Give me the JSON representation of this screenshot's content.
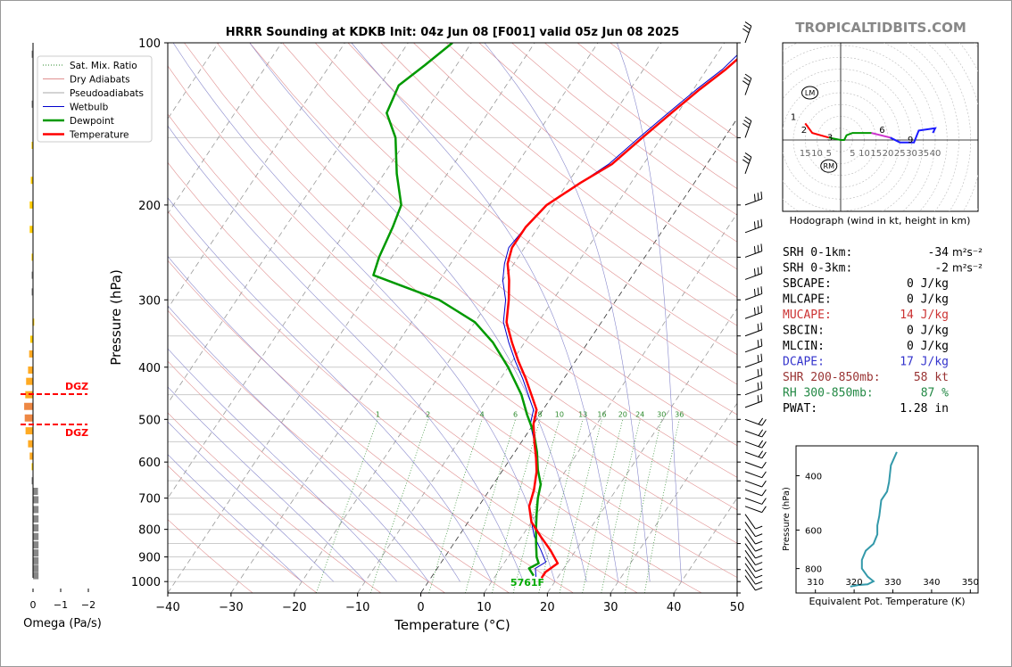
{
  "title": "HRRR Sounding at KDKB Init: 04z Jun 08 [F001] valid 05z Jun 08 2025",
  "watermark": "TROPICALTIDBITS.COM",
  "skewt": {
    "xlabel": "Temperature (°C)",
    "ylabel": "Pressure (hPa)",
    "xlim": [
      -40,
      50
    ],
    "ylim": [
      1050,
      100
    ],
    "xticks": [
      -40,
      -30,
      -20,
      -10,
      0,
      10,
      20,
      30,
      40,
      50
    ],
    "yticks": [
      100,
      200,
      300,
      400,
      500,
      600,
      700,
      800,
      900,
      1000
    ],
    "mixing_ratio_labels": [
      "1",
      "2",
      "4",
      "6",
      "8",
      "10",
      "13",
      "16",
      "20",
      "24",
      "30",
      "36"
    ],
    "surface_label": "5761F",
    "colors": {
      "temperature": "#ff0000",
      "dewpoint": "#009900",
      "wetbulb": "#0000cc",
      "sfc_label": "#00aa00"
    }
  },
  "legend": [
    {
      "label": "Sat. Mix. Ratio",
      "color": "#2e8b2e",
      "style": "dotted"
    },
    {
      "label": "Dry Adiabats",
      "color": "#e09090",
      "style": "solid"
    },
    {
      "label": "Pseudoadiabats",
      "color": "#aaaaaa",
      "style": "solid"
    },
    {
      "label": "Wetbulb",
      "color": "#0000cc",
      "style": "solid"
    },
    {
      "label": "Dewpoint",
      "color": "#009900",
      "style": "thick"
    },
    {
      "label": "Temperature",
      "color": "#ff0000",
      "style": "thick"
    }
  ],
  "chart_data": [
    {
      "type": "line",
      "title": "HRRR Sounding at KDKB Init: 04z Jun 08 [F001] valid 05z Jun 08 2025",
      "xlabel": "Temperature (°C)",
      "ylabel": "Pressure (hPa)",
      "series": [
        {
          "name": "Temperature",
          "points": [
            [
              17.5,
              985
            ],
            [
              17.5,
              960
            ],
            [
              18.5,
              925
            ],
            [
              16,
              875
            ],
            [
              13,
              825
            ],
            [
              10,
              775
            ],
            [
              8,
              725
            ],
            [
              7,
              675
            ],
            [
              5.5,
              625
            ],
            [
              4,
              590
            ],
            [
              2,
              550
            ],
            [
              0,
              510
            ],
            [
              -1,
              480
            ],
            [
              -3,
              455
            ],
            [
              -6,
              420
            ],
            [
              -9,
              390
            ],
            [
              -12,
              360
            ],
            [
              -15,
              330
            ],
            [
              -17,
              300
            ],
            [
              -19,
              276
            ],
            [
              -21,
              257
            ],
            [
              -22,
              240
            ],
            [
              -22,
              220
            ],
            [
              -21,
              200
            ],
            [
              -18,
              182
            ],
            [
              -15,
              168
            ],
            [
              -13,
              150
            ],
            [
              -11,
              135
            ],
            [
              -9,
              122
            ],
            [
              -7,
              112
            ],
            [
              -5,
              100
            ]
          ]
        },
        {
          "name": "Dewpoint",
          "points": [
            [
              16,
              975
            ],
            [
              14.5,
              945
            ],
            [
              15.5,
              925
            ],
            [
              14.5,
              900
            ],
            [
              13,
              850
            ],
            [
              11.5,
              800
            ],
            [
              10,
              750
            ],
            [
              8.5,
              700
            ],
            [
              7.5,
              660
            ],
            [
              5.5,
              620
            ],
            [
              3.5,
              575
            ],
            [
              1,
              530
            ],
            [
              -2,
              490
            ],
            [
              -5,
              450
            ],
            [
              -10,
              400
            ],
            [
              -15,
              360
            ],
            [
              -20,
              330
            ],
            [
              -28,
              300
            ],
            [
              -41,
              270
            ],
            [
              -42,
              250
            ],
            [
              -43,
              220
            ],
            [
              -44,
              200
            ],
            [
              -48,
              175
            ],
            [
              -52,
              150
            ],
            [
              -56,
              135
            ],
            [
              -57,
              120
            ],
            [
              -55,
              110
            ],
            [
              -53,
              100
            ]
          ]
        },
        {
          "name": "Wetbulb",
          "points": [
            [
              16.5,
              980
            ],
            [
              15.5,
              945
            ],
            [
              16.5,
              920
            ],
            [
              14.5,
              875
            ],
            [
              12,
              825
            ],
            [
              10,
              775
            ],
            [
              8,
              725
            ],
            [
              7,
              675
            ],
            [
              5.5,
              625
            ],
            [
              4,
              590
            ],
            [
              2,
              550
            ],
            [
              -0.5,
              510
            ],
            [
              -1.5,
              480
            ],
            [
              -3.5,
              455
            ],
            [
              -6.5,
              420
            ],
            [
              -9.5,
              390
            ],
            [
              -12.5,
              360
            ],
            [
              -15.5,
              330
            ],
            [
              -17.5,
              300
            ],
            [
              -20,
              276
            ],
            [
              -21.5,
              257
            ],
            [
              -22.5,
              240
            ],
            [
              -22,
              220
            ],
            [
              -21,
              200
            ],
            [
              -18,
              182
            ],
            [
              -15.5,
              168
            ],
            [
              -13.5,
              150
            ],
            [
              -11.5,
              135
            ],
            [
              -9.5,
              122
            ],
            [
              -7.5,
              112
            ],
            [
              -6,
              100
            ]
          ]
        }
      ]
    },
    {
      "type": "line",
      "title": "Hodograph (wind in kt, height in km)",
      "height_labels": [
        "1",
        "2",
        "3",
        "6",
        "9",
        "LM",
        "RM"
      ],
      "ring_labels": [
        "15",
        "10",
        "5",
        "5",
        "10",
        "15",
        "20",
        "25",
        "30",
        "35",
        "40"
      ],
      "series": [
        {
          "name": "0-3 km",
          "color": "#ff0000",
          "points": [
            [
              -15,
              7
            ],
            [
              -12,
              3
            ],
            [
              -5,
              1
            ]
          ]
        },
        {
          "name": "3-6 km",
          "color": "#009900",
          "points": [
            [
              -5,
              1
            ],
            [
              0,
              0
            ],
            [
              1.5,
              0
            ],
            [
              2.5,
              2
            ],
            [
              5,
              3
            ],
            [
              9,
              3
            ],
            [
              13,
              3
            ]
          ]
        },
        {
          "name": "6-9 km",
          "color": "#cc33cc",
          "points": [
            [
              13,
              3
            ],
            [
              17,
              2
            ],
            [
              21,
              1
            ]
          ]
        },
        {
          "name": "9+ km",
          "color": "#1a1aff",
          "points": [
            [
              21,
              1
            ],
            [
              25,
              -1
            ],
            [
              31,
              -1
            ],
            [
              33,
              4
            ],
            [
              40,
              5
            ],
            [
              39,
              3
            ]
          ]
        }
      ]
    },
    {
      "type": "line",
      "xlabel": "Equivalent Pot. Temperature (K)",
      "ylabel": "Pressure (hPa)",
      "xticks": [
        310,
        320,
        330,
        340,
        350
      ],
      "yticks": [
        400,
        600,
        800
      ],
      "series": [
        {
          "name": "Theta-E",
          "color": "#3399aa",
          "points": [
            [
              331,
              335
            ],
            [
              329.5,
              370
            ],
            [
              329,
              420
            ],
            [
              328.5,
              450
            ],
            [
              327,
              480
            ],
            [
              326.5,
              540
            ],
            [
              326,
              580
            ],
            [
              326,
              620
            ],
            [
              325,
              665
            ],
            [
              323,
              700
            ],
            [
              322,
              750
            ],
            [
              322,
              800
            ],
            [
              323.5,
              850
            ],
            [
              325,
              880
            ],
            [
              323.5,
              900
            ],
            [
              321,
              905
            ],
            [
              319,
              915
            ]
          ]
        }
      ]
    },
    {
      "type": "bar",
      "xlabel": "Omega (Pa/s)",
      "xticks": [
        "0",
        "−1",
        "−2"
      ],
      "dgz_label": "DGZ",
      "values_note": "orientation horizontal",
      "series": [
        {
          "name": "Omega",
          "bars": [
            {
              "p": 105,
              "v": -0.05,
              "c": "#888888"
            },
            {
              "p": 130,
              "v": -0.05,
              "c": "#888888"
            },
            {
              "p": 155,
              "v": -0.05,
              "c": "#ffcc00"
            },
            {
              "p": 180,
              "v": -0.08,
              "c": "#ffcc00"
            },
            {
              "p": 200,
              "v": -0.12,
              "c": "#ffcc00"
            },
            {
              "p": 222,
              "v": -0.12,
              "c": "#ffcc00"
            },
            {
              "p": 250,
              "v": -0.05,
              "c": "#ffcc00"
            },
            {
              "p": 270,
              "v": -0.05,
              "c": "#888888"
            },
            {
              "p": 290,
              "v": -0.05,
              "c": "#888888"
            },
            {
              "p": 330,
              "v": -0.02,
              "c": "#ffcc00"
            },
            {
              "p": 355,
              "v": -0.1,
              "c": "#ffcc00"
            },
            {
              "p": 378,
              "v": -0.14,
              "c": "#ffaa22"
            },
            {
              "p": 405,
              "v": -0.18,
              "c": "#ffaa22"
            },
            {
              "p": 425,
              "v": -0.25,
              "c": "#ffaa22"
            },
            {
              "p": 450,
              "v": -0.28,
              "c": "#ffaa22"
            },
            {
              "p": 473,
              "v": -0.32,
              "c": "#ee8844"
            },
            {
              "p": 497,
              "v": -0.3,
              "c": "#ee8844"
            },
            {
              "p": 525,
              "v": -0.27,
              "c": "#ffaa22"
            },
            {
              "p": 555,
              "v": -0.18,
              "c": "#ffaa22"
            },
            {
              "p": 585,
              "v": -0.12,
              "c": "#ffaa22"
            },
            {
              "p": 612,
              "v": -0.05,
              "c": "#ffcc00"
            },
            {
              "p": 650,
              "v": -0.05,
              "c": "#888888"
            },
            {
              "p": 680,
              "v": 0.18,
              "c": "#888888"
            },
            {
              "p": 705,
              "v": 0.2,
              "c": "#888888"
            },
            {
              "p": 735,
              "v": 0.2,
              "c": "#888888"
            },
            {
              "p": 765,
              "v": 0.2,
              "c": "#888888"
            },
            {
              "p": 795,
              "v": 0.2,
              "c": "#888888"
            },
            {
              "p": 825,
              "v": 0.2,
              "c": "#888888"
            },
            {
              "p": 855,
              "v": 0.2,
              "c": "#888888"
            },
            {
              "p": 885,
              "v": 0.2,
              "c": "#888888"
            },
            {
              "p": 915,
              "v": 0.2,
              "c": "#888888"
            },
            {
              "p": 945,
              "v": 0.2,
              "c": "#888888"
            },
            {
              "p": 975,
              "v": 0.2,
              "c": "#888888"
            }
          ]
        }
      ]
    }
  ],
  "hodograph": {
    "caption": "Hodograph (wind in kt, height in km)"
  },
  "indices": [
    {
      "label": "SRH 0-1km:",
      "value": "-34",
      "unit": "m²s⁻²",
      "color": "#000000"
    },
    {
      "label": "SRH 0-3km:",
      "value": "-2",
      "unit": "m²s⁻²",
      "color": "#000000"
    },
    {
      "label": "SBCAPE:",
      "value": "0 J/kg",
      "unit": "",
      "color": "#000000"
    },
    {
      "label": "MLCAPE:",
      "value": "0 J/kg",
      "unit": "",
      "color": "#000000"
    },
    {
      "label": "MUCAPE:",
      "value": "14 J/kg",
      "unit": "",
      "color": "#cc3333"
    },
    {
      "label": "SBCIN:",
      "value": "0 J/kg",
      "unit": "",
      "color": "#000000"
    },
    {
      "label": "MLCIN:",
      "value": "0 J/kg",
      "unit": "",
      "color": "#000000"
    },
    {
      "label": "DCAPE:",
      "value": "17 J/kg",
      "unit": "",
      "color": "#3333cc"
    },
    {
      "label": "SHR 200-850mb:",
      "value": "58 kt",
      "unit": "",
      "color": "#993333"
    },
    {
      "label": "RH 300-850mb:",
      "value": "87 %",
      "unit": "",
      "color": "#228844"
    },
    {
      "label": "PWAT:",
      "value": "1.28 in",
      "unit": "",
      "color": "#000000"
    }
  ],
  "thetae": {
    "xlabel": "Equivalent Pot. Temperature (K)",
    "ylabel": "Pressure (hPa)"
  },
  "omega": {
    "xlabel": "Omega (Pa/s)",
    "dgz": "DGZ"
  }
}
